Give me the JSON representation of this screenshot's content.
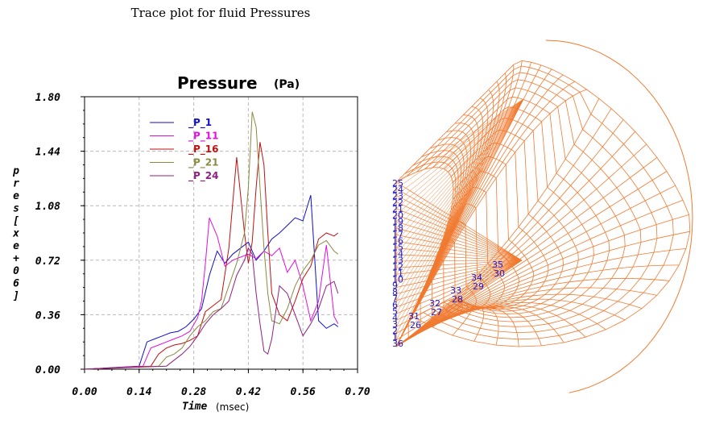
{
  "page": {
    "title": "Trace plot for fluid Pressures"
  },
  "chart_data": {
    "type": "line",
    "title": "Pressure",
    "title_unit": "(Pa)",
    "xlabel": "Time",
    "xlabel_unit": "(msec)",
    "ylabel": "pres[xe+06]",
    "xlim": [
      0.0,
      0.7
    ],
    "ylim": [
      0.0,
      1.8
    ],
    "xticks": [
      "0.00",
      "0.14",
      "0.28",
      "0.42",
      "0.56",
      "0.70"
    ],
    "yticks": [
      "0.00",
      "0.36",
      "0.72",
      "1.08",
      "1.44",
      "1.80"
    ],
    "grid": true,
    "legend_position": "top-left",
    "series": [
      {
        "name": "_P_1",
        "color": "#1010c8",
        "x": [
          0.0,
          0.14,
          0.16,
          0.18,
          0.2,
          0.22,
          0.24,
          0.26,
          0.28,
          0.3,
          0.32,
          0.34,
          0.36,
          0.38,
          0.4,
          0.42,
          0.44,
          0.46,
          0.48,
          0.5,
          0.52,
          0.54,
          0.56,
          0.58,
          0.6,
          0.62,
          0.64,
          0.65
        ],
        "y": [
          0.0,
          0.02,
          0.18,
          0.2,
          0.22,
          0.24,
          0.25,
          0.28,
          0.33,
          0.4,
          0.62,
          0.78,
          0.7,
          0.76,
          0.8,
          0.84,
          0.72,
          0.78,
          0.86,
          0.9,
          0.95,
          1.0,
          0.98,
          1.15,
          0.32,
          0.27,
          0.3,
          0.28
        ]
      },
      {
        "name": "_P_11",
        "color": "#e010e0",
        "x": [
          0.0,
          0.15,
          0.17,
          0.19,
          0.21,
          0.23,
          0.25,
          0.27,
          0.29,
          0.3,
          0.31,
          0.32,
          0.34,
          0.36,
          0.38,
          0.4,
          0.42,
          0.44,
          0.46,
          0.48,
          0.5,
          0.52,
          0.54,
          0.56,
          0.58,
          0.6,
          0.62,
          0.64,
          0.65
        ],
        "y": [
          0.0,
          0.02,
          0.14,
          0.16,
          0.18,
          0.2,
          0.22,
          0.25,
          0.34,
          0.45,
          0.7,
          1.0,
          0.88,
          0.68,
          0.72,
          0.74,
          0.76,
          0.73,
          0.78,
          0.75,
          0.8,
          0.64,
          0.72,
          0.55,
          0.32,
          0.45,
          0.82,
          0.35,
          0.3
        ]
      },
      {
        "name": "_P_16",
        "color": "#c01010",
        "x": [
          0.0,
          0.17,
          0.19,
          0.21,
          0.23,
          0.25,
          0.27,
          0.29,
          0.31,
          0.33,
          0.35,
          0.37,
          0.39,
          0.41,
          0.42,
          0.43,
          0.44,
          0.45,
          0.46,
          0.47,
          0.48,
          0.5,
          0.52,
          0.54,
          0.56,
          0.58,
          0.6,
          0.62,
          0.64,
          0.65
        ],
        "y": [
          0.0,
          0.02,
          0.1,
          0.14,
          0.16,
          0.17,
          0.19,
          0.22,
          0.38,
          0.42,
          0.46,
          0.8,
          1.4,
          0.9,
          0.7,
          0.84,
          1.2,
          1.5,
          1.35,
          0.9,
          0.5,
          0.36,
          0.32,
          0.45,
          0.6,
          0.68,
          0.86,
          0.9,
          0.88,
          0.9
        ]
      },
      {
        "name": "_P_21",
        "color": "#8a8a40",
        "x": [
          0.0,
          0.19,
          0.21,
          0.23,
          0.25,
          0.27,
          0.29,
          0.31,
          0.33,
          0.35,
          0.37,
          0.39,
          0.41,
          0.42,
          0.43,
          0.44,
          0.45,
          0.46,
          0.47,
          0.48,
          0.5,
          0.52,
          0.54,
          0.56,
          0.58,
          0.6,
          0.62,
          0.64,
          0.65
        ],
        "y": [
          0.0,
          0.02,
          0.08,
          0.1,
          0.14,
          0.22,
          0.28,
          0.32,
          0.38,
          0.4,
          0.55,
          0.7,
          0.9,
          1.2,
          1.7,
          1.6,
          1.2,
          0.8,
          0.5,
          0.32,
          0.3,
          0.4,
          0.55,
          0.65,
          0.72,
          0.82,
          0.85,
          0.78,
          0.76
        ]
      },
      {
        "name": "_P_24",
        "color": "#902080",
        "x": [
          0.0,
          0.21,
          0.23,
          0.25,
          0.27,
          0.29,
          0.31,
          0.33,
          0.35,
          0.37,
          0.39,
          0.41,
          0.42,
          0.43,
          0.44,
          0.45,
          0.46,
          0.47,
          0.48,
          0.5,
          0.52,
          0.54,
          0.56,
          0.58,
          0.6,
          0.62,
          0.64,
          0.65
        ],
        "y": [
          0.0,
          0.02,
          0.06,
          0.1,
          0.15,
          0.22,
          0.3,
          0.36,
          0.4,
          0.45,
          0.62,
          0.72,
          0.8,
          0.76,
          0.5,
          0.3,
          0.12,
          0.1,
          0.2,
          0.55,
          0.5,
          0.36,
          0.22,
          0.3,
          0.4,
          0.55,
          0.58,
          0.5
        ]
      }
    ]
  },
  "mesh": {
    "line_color": "#f07a30",
    "node_labels_left": [
      "25",
      "24",
      "23",
      "22",
      "21",
      "20",
      "19",
      "18",
      "17",
      "16",
      "15",
      "14",
      "13",
      "12",
      "11",
      "10",
      "9",
      "8",
      "7",
      "6",
      "5",
      "4",
      "3",
      "2",
      "1",
      "36"
    ],
    "node_labels_diag": [
      {
        "top": "35",
        "bottom": "30"
      },
      {
        "top": "34",
        "bottom": "29"
      },
      {
        "top": "33",
        "bottom": "28"
      },
      {
        "top": "32",
        "bottom": "27"
      },
      {
        "top": "31",
        "bottom": "26"
      }
    ]
  }
}
